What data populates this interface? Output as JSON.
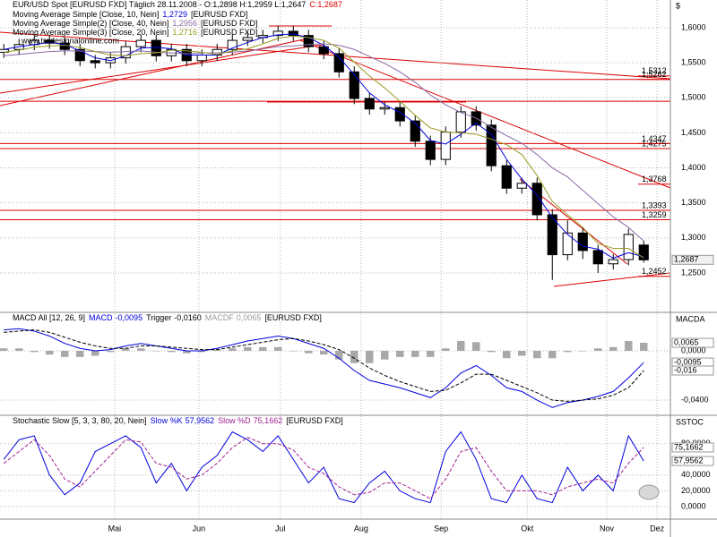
{
  "chart_data": [
    {
      "type": "candlestick",
      "title": "EUR/USD Spot [EURUSD FXD]  Täglich 28.11.2008 - O:1,2898 H:1,2959 L:1,2647",
      "title_close": "C:1,2687",
      "title_close_color": "#dd0000",
      "axis_label": "$",
      "source": "[EURUSD FXD]",
      "watermark": "www.tradesignalonline.com",
      "x": [
        1,
        5,
        9,
        13,
        17,
        21,
        25,
        29,
        33,
        37,
        41,
        45,
        49,
        53,
        57,
        61,
        65,
        69,
        73,
        77,
        81,
        85,
        89,
        93,
        97,
        101,
        105,
        109,
        113,
        117,
        121,
        125,
        129,
        133,
        137,
        141,
        145,
        149,
        153,
        157,
        161,
        165,
        169
      ],
      "xlim": [
        0,
        176
      ],
      "open": [
        1.565,
        1.569,
        1.576,
        1.582,
        1.578,
        1.569,
        1.553,
        1.55,
        1.557,
        1.573,
        1.582,
        1.56,
        1.569,
        1.553,
        1.561,
        1.569,
        1.582,
        1.586,
        1.589,
        1.595,
        1.589,
        1.573,
        1.563,
        1.537,
        1.499,
        1.484,
        1.486,
        1.467,
        1.438,
        1.412,
        1.451,
        1.48,
        1.461,
        1.403,
        1.371,
        1.378,
        1.333,
        1.276,
        1.307,
        1.282,
        1.263,
        1.269,
        1.2898
      ],
      "high": [
        1.577,
        1.584,
        1.59,
        1.59,
        1.586,
        1.577,
        1.561,
        1.565,
        1.581,
        1.59,
        1.59,
        1.577,
        1.577,
        1.569,
        1.577,
        1.59,
        1.594,
        1.597,
        1.603,
        1.603,
        1.597,
        1.581,
        1.571,
        1.545,
        1.507,
        1.494,
        1.494,
        1.475,
        1.446,
        1.459,
        1.488,
        1.488,
        1.469,
        1.411,
        1.386,
        1.386,
        1.341,
        1.325,
        1.315,
        1.29,
        1.277,
        1.313,
        1.2959
      ],
      "low": [
        1.557,
        1.561,
        1.568,
        1.57,
        1.561,
        1.545,
        1.542,
        1.542,
        1.549,
        1.565,
        1.552,
        1.552,
        1.545,
        1.545,
        1.553,
        1.561,
        1.574,
        1.578,
        1.581,
        1.581,
        1.565,
        1.555,
        1.529,
        1.491,
        1.476,
        1.476,
        1.459,
        1.43,
        1.404,
        1.404,
        1.443,
        1.453,
        1.395,
        1.363,
        1.363,
        1.325,
        1.24,
        1.268,
        1.27,
        1.25,
        1.255,
        1.261,
        1.2647
      ],
      "close": [
        1.569,
        1.576,
        1.582,
        1.578,
        1.569,
        1.553,
        1.55,
        1.557,
        1.573,
        1.582,
        1.56,
        1.569,
        1.553,
        1.561,
        1.569,
        1.582,
        1.586,
        1.589,
        1.595,
        1.589,
        1.573,
        1.563,
        1.537,
        1.499,
        1.484,
        1.486,
        1.467,
        1.438,
        1.412,
        1.451,
        1.48,
        1.461,
        1.403,
        1.371,
        1.378,
        1.333,
        1.276,
        1.307,
        1.282,
        1.263,
        1.269,
        1.305,
        1.2687
      ],
      "up_color": "#ffffff",
      "down_color": "#000000",
      "last_price_label": "1,2687",
      "series": [
        {
          "name": "Moving Average Simple [Close, 10, Nein]",
          "legend_value": "1,2729",
          "color": "#0000dd",
          "values": [
            1.569,
            1.573,
            1.576,
            1.579,
            1.576,
            1.567,
            1.557,
            1.553,
            1.56,
            1.571,
            1.572,
            1.57,
            1.561,
            1.561,
            1.561,
            1.571,
            1.579,
            1.586,
            1.59,
            1.591,
            1.586,
            1.575,
            1.558,
            1.533,
            1.507,
            1.49,
            1.479,
            1.464,
            1.439,
            1.434,
            1.448,
            1.464,
            1.448,
            1.412,
            1.384,
            1.361,
            1.329,
            1.305,
            1.288,
            1.284,
            1.271,
            1.279,
            1.2729
          ]
        },
        {
          "name": "Moving Average Simple(2) [Close, 40, Nein]",
          "legend_value": "1,2956",
          "color": "#8a6aa6",
          "values": [
            1.56,
            1.562,
            1.564,
            1.566,
            1.567,
            1.567,
            1.566,
            1.565,
            1.566,
            1.567,
            1.565,
            1.564,
            1.563,
            1.564,
            1.564,
            1.565,
            1.567,
            1.57,
            1.573,
            1.574,
            1.576,
            1.577,
            1.575,
            1.569,
            1.559,
            1.549,
            1.537,
            1.522,
            1.504,
            1.49,
            1.479,
            1.471,
            1.458,
            1.446,
            1.435,
            1.419,
            1.4,
            1.387,
            1.368,
            1.349,
            1.33,
            1.315,
            1.2956
          ]
        },
        {
          "name": "Moving Average Simple(3) [Close, 20, Nein]",
          "legend_value": "1,2716",
          "color": "#9a9a22",
          "values": [
            1.565,
            1.568,
            1.572,
            1.574,
            1.575,
            1.572,
            1.566,
            1.561,
            1.56,
            1.563,
            1.564,
            1.568,
            1.567,
            1.565,
            1.562,
            1.567,
            1.57,
            1.577,
            1.585,
            1.588,
            1.586,
            1.582,
            1.571,
            1.551,
            1.531,
            1.514,
            1.495,
            1.475,
            1.457,
            1.451,
            1.45,
            1.448,
            1.441,
            1.433,
            1.419,
            1.389,
            1.352,
            1.333,
            1.315,
            1.292,
            1.285,
            1.285,
            1.2716
          ]
        }
      ],
      "hlines": [
        1.5262,
        1.495,
        1.4347,
        1.4275,
        1.3393,
        1.3259
      ],
      "hline_color": "#dd0000",
      "levels": [
        {
          "value": 1.5312,
          "label": "1,5312"
        },
        {
          "value": 1.5262,
          "label": "1,5262"
        },
        {
          "value": 1.4347,
          "label": "1,4347"
        },
        {
          "value": 1.4275,
          "label": "1,4275"
        },
        {
          "value": 1.3768,
          "label": "1,3768"
        },
        {
          "value": 1.3393,
          "label": "1,3393"
        },
        {
          "value": 1.3259,
          "label": "1,3259"
        },
        {
          "value": 1.2452,
          "label": "1,2452"
        }
      ],
      "ylim": [
        1.195,
        1.6396
      ],
      "yticks": [
        {
          "value": 1.25,
          "label": "1,2500"
        },
        {
          "value": 1.3,
          "label": "1,3000"
        },
        {
          "value": 1.35,
          "label": "1,3500"
        },
        {
          "value": 1.4,
          "label": "1,4000"
        },
        {
          "value": 1.45,
          "label": "1,4500"
        },
        {
          "value": 1.5,
          "label": "1,5000"
        },
        {
          "value": 1.55,
          "label": "1,5500"
        },
        {
          "value": 1.6,
          "label": "1,6000"
        }
      ],
      "grid": true
    },
    {
      "type": "macd",
      "title": "MACD All [12, 26, 9]",
      "axis_label": "MACDA",
      "source": "[EURUSD FXD]",
      "series": [
        {
          "name": "MACD",
          "legend_value": "-0,0095",
          "last_label": "-0,0095",
          "color": "#0000dd",
          "style": "solid",
          "values": [
            0.017,
            0.018,
            0.016,
            0.012,
            0.006,
            0.002,
            0.0,
            0.001,
            0.004,
            0.006,
            0.004,
            0.002,
            0.0,
            0.0,
            0.002,
            0.005,
            0.008,
            0.01,
            0.012,
            0.01,
            0.006,
            0.002,
            -0.006,
            -0.016,
            -0.024,
            -0.027,
            -0.03,
            -0.034,
            -0.038,
            -0.03,
            -0.018,
            -0.012,
            -0.02,
            -0.03,
            -0.033,
            -0.04,
            -0.046,
            -0.042,
            -0.04,
            -0.037,
            -0.033,
            -0.022,
            -0.0095
          ]
        },
        {
          "name": "Trigger",
          "legend_value": "-0,0160",
          "last_label": "-0,016",
          "color": "#000000",
          "style": "dashed",
          "values": [
            0.015,
            0.016,
            0.017,
            0.015,
            0.011,
            0.007,
            0.004,
            0.002,
            0.002,
            0.004,
            0.004,
            0.003,
            0.002,
            0.001,
            0.001,
            0.003,
            0.005,
            0.007,
            0.009,
            0.01,
            0.008,
            0.005,
            0.001,
            -0.006,
            -0.014,
            -0.02,
            -0.025,
            -0.029,
            -0.033,
            -0.032,
            -0.026,
            -0.019,
            -0.019,
            -0.024,
            -0.029,
            -0.034,
            -0.04,
            -0.041,
            -0.04,
            -0.039,
            -0.036,
            -0.03,
            -0.016
          ]
        },
        {
          "name": "MACDF",
          "legend_value": "0,0065",
          "last_label": "0,0065",
          "color": "#a8a8a8",
          "style": "bars",
          "values": [
            0.002,
            0.002,
            -0.001,
            -0.003,
            -0.005,
            -0.005,
            -0.004,
            -0.001,
            0.002,
            0.002,
            0.0,
            -0.001,
            -0.002,
            -0.001,
            0.001,
            0.002,
            0.003,
            0.003,
            0.003,
            0.0,
            -0.002,
            -0.003,
            -0.007,
            -0.01,
            -0.01,
            -0.007,
            -0.005,
            -0.005,
            -0.005,
            0.002,
            0.008,
            0.007,
            -0.001,
            -0.006,
            -0.004,
            -0.006,
            -0.006,
            -0.001,
            0.0,
            0.002,
            0.003,
            0.008,
            0.0065
          ]
        }
      ],
      "ylim": [
        -0.0516,
        0.0305
      ],
      "yticks": [
        {
          "value": 0,
          "label": "0,0000"
        },
        {
          "value": -0.04,
          "label": "-0,0400"
        }
      ],
      "grid": true
    },
    {
      "type": "line",
      "title": "Stochastic Slow [5, 3, 3, 80, 20, Nein]",
      "axis_label": "SSTOC",
      "source": "[EURUSD FXD]",
      "series": [
        {
          "name": "Slow %K",
          "legend_value": "57,9562",
          "last_label": "57,9562",
          "color": "#0000dd",
          "style": "solid",
          "values": [
            60,
            85,
            90,
            40,
            15,
            30,
            70,
            80,
            90,
            75,
            30,
            55,
            20,
            50,
            65,
            95,
            85,
            70,
            90,
            60,
            30,
            50,
            10,
            5,
            30,
            45,
            20,
            10,
            5,
            70,
            95,
            60,
            10,
            5,
            40,
            10,
            5,
            50,
            20,
            40,
            20,
            90,
            57.9562
          ]
        },
        {
          "name": "Slow %D",
          "legend_value": "75,1662",
          "last_label": "75,1662",
          "color": "#a02090",
          "style": "dashed",
          "values": [
            55,
            70,
            85,
            65,
            35,
            25,
            45,
            65,
            85,
            82,
            55,
            50,
            35,
            40,
            55,
            75,
            88,
            80,
            80,
            72,
            50,
            42,
            25,
            15,
            18,
            30,
            30,
            20,
            10,
            35,
            70,
            75,
            45,
            20,
            20,
            20,
            15,
            25,
            30,
            35,
            30,
            55,
            75.1662
          ]
        }
      ],
      "ylim": [
        -16,
        115
      ],
      "yticks": [
        {
          "value": 0,
          "label": "0,0000"
        },
        {
          "value": 20,
          "label": "20,0000"
        },
        {
          "value": 40,
          "label": "40,0000"
        },
        {
          "value": 80,
          "label": "80,0000"
        }
      ],
      "xticks": [
        {
          "value": 30.1,
          "label": "Mai"
        },
        {
          "value": 52.2,
          "label": "Jun"
        },
        {
          "value": 73.6,
          "label": "Jul"
        },
        {
          "value": 94.8,
          "label": "Aug"
        },
        {
          "value": 115.8,
          "label": "Sep"
        },
        {
          "value": 138.4,
          "label": "Okt"
        },
        {
          "value": 159.3,
          "label": "Nov"
        },
        {
          "value": 172.5,
          "label": "Dez"
        }
      ],
      "grid": true
    }
  ]
}
